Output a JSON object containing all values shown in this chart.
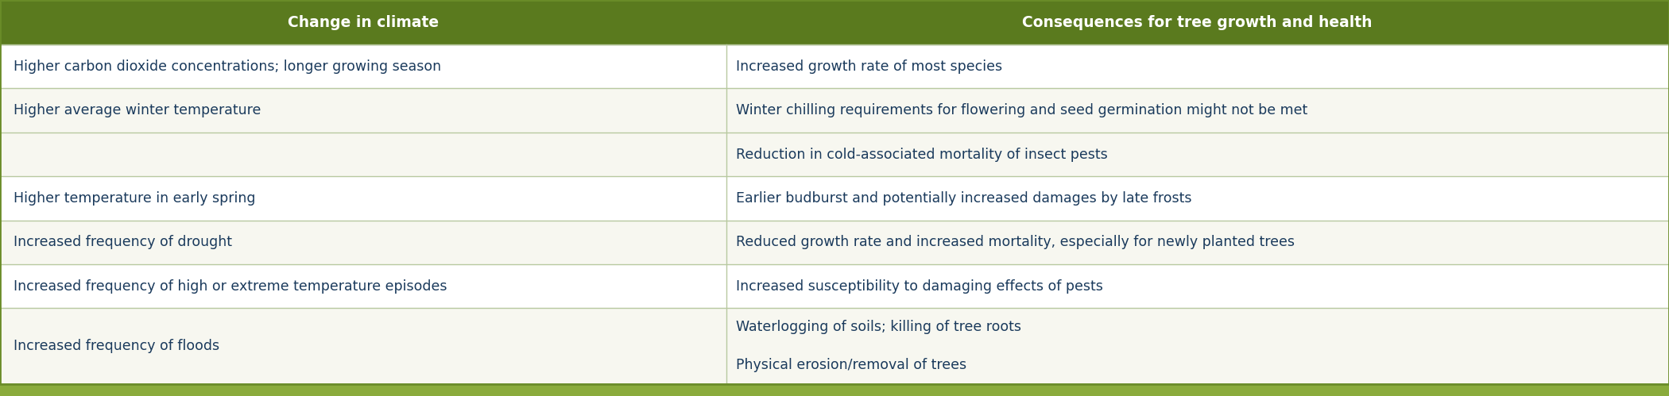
{
  "header": [
    "Change in climate",
    "Consequences for tree growth and health"
  ],
  "header_bg": "#5a7a1e",
  "header_text_color": "#ffffff",
  "col_split": 0.435,
  "rows": [
    {
      "left": "Higher carbon dioxide concentrations; longer growing season",
      "right": "Increased growth rate of most species",
      "bg": "#ffffff"
    },
    {
      "left": "Higher average winter temperature",
      "right": "Winter chilling requirements for flowering and seed germination might not be met",
      "bg": "#f7f7f0"
    },
    {
      "left": "",
      "right": "Reduction in cold-associated mortality of insect pests",
      "bg": "#f7f7f0"
    },
    {
      "left": "Higher temperature in early spring",
      "right": "Earlier budburst and potentially increased damages by late frosts",
      "bg": "#ffffff"
    },
    {
      "left": "Increased frequency of drought",
      "right": "Reduced growth rate and increased mortality, especially for newly planted trees",
      "bg": "#f7f7f0"
    },
    {
      "left": "Increased frequency of high or extreme temperature episodes",
      "right": "Increased susceptibility to damaging effects of pests",
      "bg": "#ffffff"
    },
    {
      "left": "Increased frequency of floods",
      "right_lines": [
        "Waterlogging of soils; killing of tree roots",
        "Physical erosion/removal of trees"
      ],
      "right": "Waterlogging of soils; killing of tree roots\nPhysical erosion/removal of trees",
      "bg": "#f7f7f0"
    }
  ],
  "text_color": "#1a3a5c",
  "separator_color": "#b8c9a0",
  "bottom_bar_color": "#8aab3c",
  "outer_border_color": "#6a8c28",
  "figsize": [
    21.0,
    4.99
  ],
  "dpi": 100,
  "font_size": 12.5,
  "header_font_size": 13.5
}
